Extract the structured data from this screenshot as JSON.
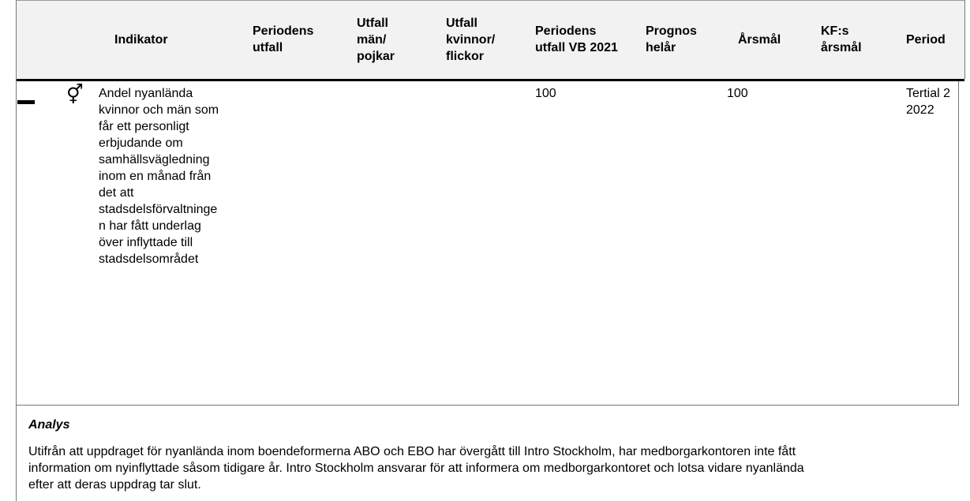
{
  "table": {
    "headers": [
      "Indikator",
      "Periodens utfall",
      "Utfall män/ pojkar",
      "Utfall kvinnor/ flickor",
      "Periodens utfall VB 2021",
      "Prognos helår",
      "Årsmål",
      "KF:s årsmål",
      "Period"
    ],
    "row": {
      "indicator": "Andel nyanlända kvinnor och män som får ett personligt erbjudande om samhällsvägledning inom en månad från det att stadsdelsförvaltningen har fått underlag över inflyttade till stadsdelsområdet",
      "utfall_vb_2021": 100,
      "arsmal": 100,
      "period": "Tertial 2 2022"
    },
    "analysis": {
      "title": "Analys",
      "text": "Utifrån att uppdraget för nyanlända inom boendeformerna ABO och EBO har övergått till Intro Stockholm, har medborgarkontoren inte fått information om nyinflyttade såsom tidigare år. Intro Stockholm ansvarar för att informera om medborgarkontoret och lotsa vidare nyanlända efter att deras uppdrag tar slut."
    }
  }
}
